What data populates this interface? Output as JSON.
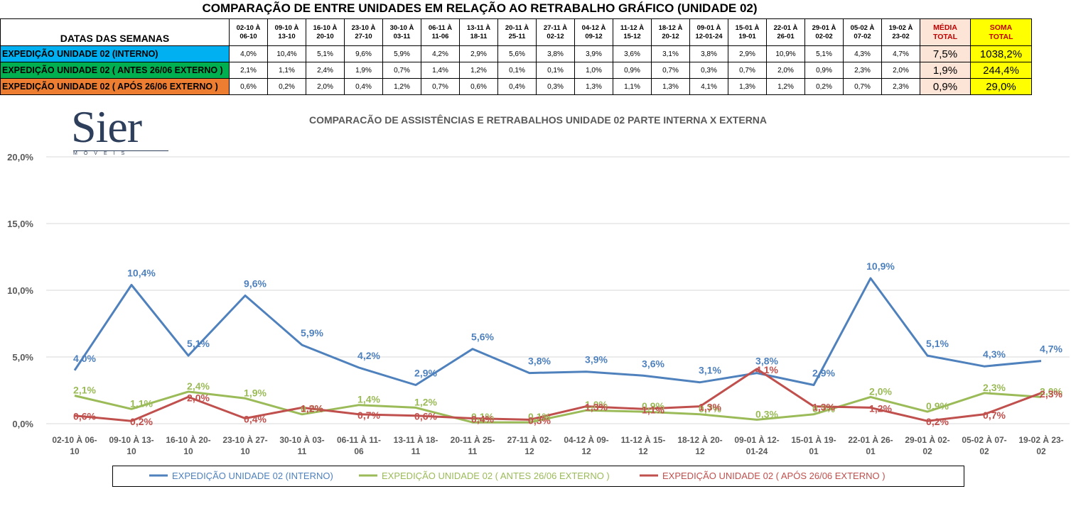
{
  "title": "COMPARAÇÃO DE ENTRE UNIDADES EM RELAÇÃO AO RETRABALHO GRÁFICO (UNIDADE 02)",
  "logo": {
    "name": "Sier",
    "sub": "MÓVEIS"
  },
  "table": {
    "corner_label": "DATAS DAS SEMANAS",
    "weeks": [
      [
        "02-10 À",
        "06-10"
      ],
      [
        "09-10 À",
        "13-10"
      ],
      [
        "16-10 À",
        "20-10"
      ],
      [
        "23-10 À",
        "27-10"
      ],
      [
        "30-10 À",
        "03-11"
      ],
      [
        "06-11 À",
        "11-06"
      ],
      [
        "13-11 À",
        "18-11"
      ],
      [
        "20-11 À",
        "25-11"
      ],
      [
        "27-11 À",
        "02-12"
      ],
      [
        "04-12 À",
        "09-12"
      ],
      [
        "11-12 À",
        "15-12"
      ],
      [
        "18-12 À",
        "20-12"
      ],
      [
        "09-01 À",
        "12-01-24"
      ],
      [
        "15-01 À",
        "19-01"
      ],
      [
        "22-01 À",
        "26-01"
      ],
      [
        "29-01 À",
        "02-02"
      ],
      [
        "05-02 À",
        "07-02"
      ],
      [
        "19-02 À",
        "23-02"
      ]
    ],
    "media_header": [
      "MÉDIA",
      "TOTAL"
    ],
    "soma_header": [
      "SOMA",
      "TOTAL"
    ],
    "rows": [
      {
        "label": "EXPEDIÇÃO UNIDADE 02 (INTERNO)",
        "color": "#00b0f0",
        "values": [
          "4,0%",
          "10,4%",
          "5,1%",
          "9,6%",
          "5,9%",
          "4,2%",
          "2,9%",
          "5,6%",
          "3,8%",
          "3,9%",
          "3,6%",
          "3,1%",
          "3,8%",
          "2,9%",
          "10,9%",
          "5,1%",
          "4,3%",
          "4,7%"
        ],
        "media": "7,5%",
        "soma": "1038,2%"
      },
      {
        "label": "EXPEDIÇÃO UNIDADE 02 ( ANTES 26/06 EXTERNO )",
        "color": "#00b050",
        "values": [
          "2,1%",
          "1,1%",
          "2,4%",
          "1,9%",
          "0,7%",
          "1,4%",
          "1,2%",
          "0,1%",
          "0,1%",
          "1,0%",
          "0,9%",
          "0,7%",
          "0,3%",
          "0,7%",
          "2,0%",
          "0,9%",
          "2,3%",
          "2,0%"
        ],
        "media": "1,9%",
        "soma": "244,4%"
      },
      {
        "label": "EXPEDIÇÃO UNIDADE 02 ( APÓS 26/06 EXTERNO )",
        "color": "#ed7d31",
        "values": [
          "0,6%",
          "0,2%",
          "2,0%",
          "0,4%",
          "1,2%",
          "0,7%",
          "0,6%",
          "0,4%",
          "0,3%",
          "1,3%",
          "1,1%",
          "1,3%",
          "4,1%",
          "1,3%",
          "1,2%",
          "0,2%",
          "0,7%",
          "2,3%"
        ],
        "media": "0,9%",
        "soma": "29,0%"
      }
    ]
  },
  "chart_data": {
    "type": "line",
    "title": "COMPARACÃO DE ASSISTÊNCIAS E RETRABALHOS UNIDADE 02 PARTE INTERNA X EXTERNA",
    "categories": [
      [
        "02-10 À 06-",
        "10"
      ],
      [
        "09-10 À 13-",
        "10"
      ],
      [
        "16-10 À 20-",
        "10"
      ],
      [
        "23-10 À 27-",
        "10"
      ],
      [
        "30-10 À 03-",
        "11"
      ],
      [
        "06-11 À 11-",
        "06"
      ],
      [
        "13-11 À 18-",
        "11"
      ],
      [
        "20-11 À 25-",
        "11"
      ],
      [
        "27-11 À 02-",
        "12"
      ],
      [
        "04-12 À 09-",
        "12"
      ],
      [
        "11-12 À 15-",
        "12"
      ],
      [
        "18-12 À 20-",
        "12"
      ],
      [
        "09-01 À 12-",
        "01-24"
      ],
      [
        "15-01 À 19-",
        "01"
      ],
      [
        "22-01 À 26-",
        "01"
      ],
      [
        "29-01 À 02-",
        "02"
      ],
      [
        "05-02 À 07-",
        "02"
      ],
      [
        "19-02 À 23-",
        "02"
      ]
    ],
    "ylim": [
      0,
      20
    ],
    "yticks": [
      0,
      5,
      10,
      15,
      20
    ],
    "ytick_labels": [
      "0,0%",
      "5,0%",
      "10,0%",
      "15,0%",
      "20,0%"
    ],
    "grid": true,
    "legend_position": "bottom",
    "series": [
      {
        "name": "EXPEDIÇÃO UNIDADE 02 (INTERNO)",
        "color": "#4f81bd",
        "values": [
          4.0,
          10.4,
          5.1,
          9.6,
          5.9,
          4.2,
          2.9,
          5.6,
          3.8,
          3.9,
          3.6,
          3.1,
          3.8,
          2.9,
          10.9,
          5.1,
          4.3,
          4.7
        ],
        "labels": [
          "4,0%",
          "10,4%",
          "5,1%",
          "9,6%",
          "5,9%",
          "4,2%",
          "2,9%",
          "5,6%",
          "3,8%",
          "3,9%",
          "3,6%",
          "3,1%",
          "3,8%",
          "2,9%",
          "10,9%",
          "5,1%",
          "4,3%",
          "4,7%"
        ]
      },
      {
        "name": "EXPEDIÇÃO UNIDADE 02 ( ANTES 26/06 EXTERNO )",
        "color": "#9bbb59",
        "values": [
          2.1,
          1.1,
          2.4,
          1.9,
          0.7,
          1.4,
          1.2,
          0.1,
          0.1,
          1.0,
          0.9,
          0.7,
          0.3,
          0.7,
          2.0,
          0.9,
          2.3,
          2.0
        ],
        "labels": [
          "2,1%",
          "1,1%",
          "2,4%",
          "1,9%",
          "0,7%",
          "1,4%",
          "1,2%",
          "0,1%",
          "0,1%",
          "1,0%",
          "0,9%",
          "0,7%",
          "0,3%",
          "0,7%",
          "2,0%",
          "0,9%",
          "2,3%",
          "2,0%"
        ]
      },
      {
        "name": "EXPEDIÇÃO UNIDADE 02 ( APÓS 26/06 EXTERNO )",
        "color": "#c0504d",
        "values": [
          0.6,
          0.2,
          2.0,
          0.4,
          1.2,
          0.7,
          0.6,
          0.4,
          0.3,
          1.3,
          1.1,
          1.3,
          4.1,
          1.3,
          1.2,
          0.2,
          0.7,
          2.3
        ],
        "labels": [
          "0,6%",
          "0,2%",
          "2,0%",
          "0,4%",
          "1,2%",
          "0,7%",
          "0,6%",
          "0,4%",
          "0,3%",
          "1,3%",
          "1,1%",
          "1,3%",
          "4,1%",
          "1,3%",
          "1,2%",
          "0,2%",
          "0,7%",
          "2,3%"
        ]
      }
    ]
  }
}
